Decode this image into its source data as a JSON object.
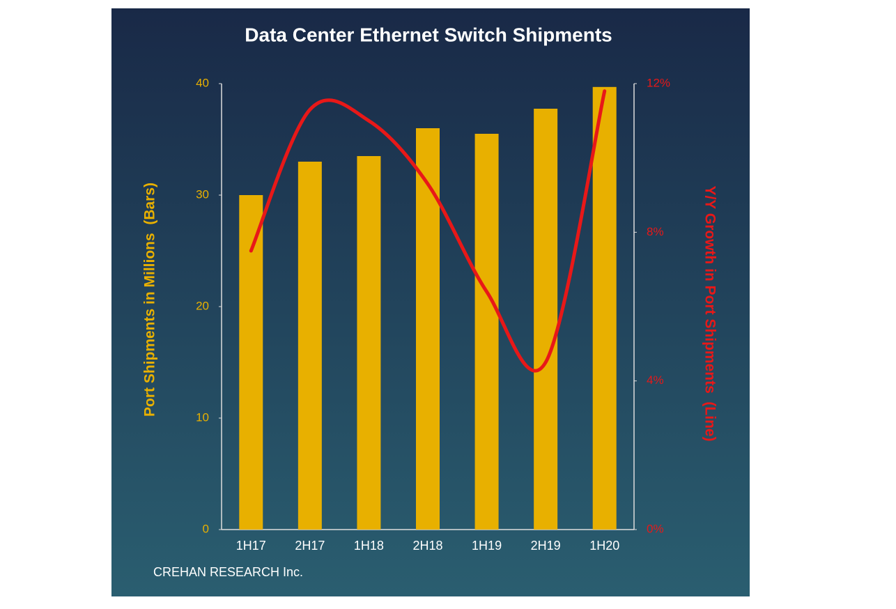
{
  "chart_data": {
    "type": "bar",
    "title": "Data Center Ethernet Switch Shipments",
    "y_label": "Port Shipments in Millions  (Bars)",
    "y2_label": "Y/Y Growth in Port Shipments  (Line)",
    "source": "CREHAN RESEARCH Inc.",
    "categories": [
      "1H17",
      "2H17",
      "1H18",
      "2H18",
      "1H19",
      "2H19",
      "1H20"
    ],
    "series": [
      {
        "type": "bar",
        "color": "#e8b000",
        "values": [
          30,
          33,
          33.5,
          36,
          35.5,
          37.75,
          39.7
        ]
      },
      {
        "type": "line",
        "axis": "y2",
        "color": "#e81818",
        "values": [
          7.5,
          11.3,
          11.0,
          9.3,
          6.4,
          4.5,
          11.8
        ]
      }
    ],
    "ylim": [
      0,
      40
    ],
    "yticks": [
      0,
      10,
      20,
      30,
      40
    ],
    "y2lim": [
      0,
      12
    ],
    "y2ticks": [
      {
        "value": 0,
        "label": "0%"
      },
      {
        "value": 4,
        "label": "4%"
      },
      {
        "value": 8,
        "label": "8%"
      },
      {
        "value": 12,
        "label": "12%"
      }
    ]
  }
}
